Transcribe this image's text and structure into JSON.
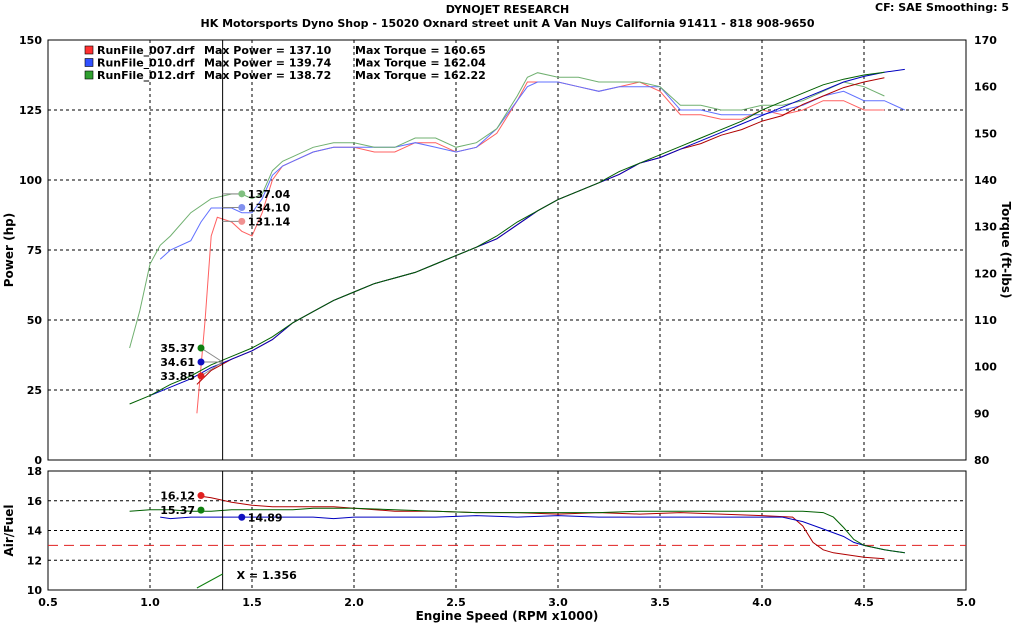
{
  "header": {
    "brand": "DYNOJET RESEARCH",
    "shop": "HK Motorsports Dyno Shop - 15020 Oxnard street unit A Van Nuys California 91411 - 818 908-9650",
    "correction": "CF: SAE  Smoothing: 5"
  },
  "chart_data": [
    {
      "type": "line",
      "panel": "power-torque",
      "xlabel": "Engine Speed (RPM x1000)",
      "ylabel": "Power (hp)",
      "y2label": "Torque (ft-lbs)",
      "xlim": [
        0.5,
        5.0
      ],
      "ylim": [
        0,
        150
      ],
      "y2lim": [
        80,
        170
      ],
      "x_ticks": [
        "0.5",
        "1.0",
        "1.5",
        "2.0",
        "2.5",
        "3.0",
        "3.5",
        "4.0",
        "4.5",
        "5.0"
      ],
      "y_ticks": [
        "0",
        "25",
        "50",
        "75",
        "100",
        "125",
        "150"
      ],
      "y2_ticks": [
        "80",
        "90",
        "100",
        "110",
        "120",
        "130",
        "140",
        "150",
        "160",
        "170"
      ],
      "grid": true,
      "legend_position": "top-left",
      "legend": [
        {
          "file": "RunFile_007.drf",
          "power_label": "Max Power = 137.10",
          "torque_label": "Max Torque = 160.65",
          "color": "#ff3030"
        },
        {
          "file": "RunFile_010.drf",
          "power_label": "Max Power = 139.74",
          "torque_label": "Max Torque = 162.04",
          "color": "#3050ff"
        },
        {
          "file": "RunFile_012.drf",
          "power_label": "Max Power = 138.72",
          "torque_label": "Max Torque = 162.22",
          "color": "#30a030"
        }
      ],
      "cursor_x": 1.356,
      "cursor_label": "X = 1.356",
      "power_markers": [
        {
          "label": "35.37",
          "y": 40,
          "color": "#108010"
        },
        {
          "label": "34.61",
          "y": 35,
          "color": "#1010c0"
        },
        {
          "label": "33.85",
          "y": 30,
          "color": "#e02020"
        }
      ],
      "torque_markers": [
        {
          "label": "137.04",
          "y": 137.04,
          "color": "#80c080"
        },
        {
          "label": "134.10",
          "y": 134.1,
          "color": "#8090ee"
        },
        {
          "label": "131.14",
          "y": 131.14,
          "color": "#f09090"
        }
      ],
      "series": [
        {
          "name": "RunFile_007.drf Power",
          "axis": "left",
          "color": "#b00000",
          "x": [
            1.23,
            1.3,
            1.4,
            1.5,
            1.6,
            1.7,
            1.8,
            1.9,
            2.0,
            2.1,
            2.2,
            2.3,
            2.4,
            2.5,
            2.6,
            2.7,
            2.8,
            2.9,
            3.0,
            3.1,
            3.2,
            3.3,
            3.4,
            3.5,
            3.6,
            3.7,
            3.8,
            3.9,
            4.0,
            4.1,
            4.2,
            4.3,
            4.4,
            4.5,
            4.6
          ],
          "y": [
            27,
            32,
            36,
            39,
            43,
            49,
            53,
            57,
            60,
            63,
            65,
            67,
            70,
            73,
            76,
            79,
            84,
            89,
            93,
            96,
            99,
            102,
            106,
            108,
            111,
            113,
            116,
            118,
            121,
            123,
            127,
            130,
            133,
            135,
            136.5
          ]
        },
        {
          "name": "RunFile_010.drf Power",
          "axis": "left",
          "color": "#0000c0",
          "x": [
            1.0,
            1.1,
            1.2,
            1.3,
            1.4,
            1.5,
            1.6,
            1.7,
            1.8,
            1.9,
            2.0,
            2.1,
            2.2,
            2.3,
            2.4,
            2.5,
            2.6,
            2.7,
            2.8,
            2.9,
            3.0,
            3.1,
            3.2,
            3.3,
            3.4,
            3.5,
            3.6,
            3.7,
            3.8,
            3.9,
            4.0,
            4.1,
            4.2,
            4.3,
            4.4,
            4.5,
            4.6,
            4.7
          ],
          "y": [
            23,
            26,
            29,
            33,
            36,
            39,
            43,
            49,
            53,
            57,
            60,
            63,
            65,
            67,
            70,
            73,
            76,
            79,
            84,
            89,
            93,
            96,
            99,
            102,
            106,
            108,
            111,
            114,
            117,
            120,
            123,
            126,
            129,
            132,
            135,
            137,
            138.5,
            139.5
          ]
        },
        {
          "name": "RunFile_012.drf Power",
          "axis": "left",
          "color": "#006000",
          "x": [
            0.9,
            1.0,
            1.1,
            1.2,
            1.3,
            1.4,
            1.5,
            1.6,
            1.7,
            1.8,
            1.9,
            2.0,
            2.1,
            2.2,
            2.3,
            2.4,
            2.5,
            2.6,
            2.7,
            2.8,
            2.9,
            3.0,
            3.1,
            3.2,
            3.3,
            3.4,
            3.5,
            3.6,
            3.7,
            3.8,
            3.9,
            4.0,
            4.1,
            4.2,
            4.3,
            4.4,
            4.5,
            4.6
          ],
          "y": [
            20,
            23,
            27,
            30,
            34,
            37,
            40,
            44,
            49,
            53,
            57,
            60,
            63,
            65,
            67,
            70,
            73,
            76,
            80,
            85,
            89,
            93,
            96,
            99,
            103,
            106,
            109,
            112,
            115,
            118,
            121,
            125,
            128,
            131,
            134,
            136,
            137.5,
            138.5
          ]
        },
        {
          "name": "RunFile_007.drf Torque",
          "axis": "right",
          "color": "#ff6060",
          "x": [
            1.23,
            1.27,
            1.3,
            1.33,
            1.4,
            1.45,
            1.5,
            1.55,
            1.6,
            1.65,
            1.7,
            1.8,
            1.9,
            2.0,
            2.1,
            2.2,
            2.3,
            2.4,
            2.5,
            2.6,
            2.7,
            2.8,
            2.85,
            2.9,
            3.0,
            3.1,
            3.2,
            3.3,
            3.4,
            3.5,
            3.6,
            3.7,
            3.8,
            3.9,
            4.0,
            4.1,
            4.2,
            4.3,
            4.4,
            4.5,
            4.6
          ],
          "y": [
            90,
            110,
            128,
            132,
            131,
            129,
            128,
            133,
            140,
            143,
            144,
            146,
            147,
            147,
            146,
            146,
            148,
            148,
            146,
            147,
            150,
            157,
            161,
            161,
            161,
            160,
            159,
            160,
            161,
            159,
            154,
            154,
            153,
            153,
            155,
            154,
            155,
            157,
            157,
            155,
            155
          ]
        },
        {
          "name": "RunFile_010.drf Torque",
          "axis": "right",
          "color": "#6070ff",
          "x": [
            1.05,
            1.1,
            1.2,
            1.25,
            1.3,
            1.4,
            1.45,
            1.5,
            1.55,
            1.6,
            1.65,
            1.7,
            1.8,
            1.9,
            2.0,
            2.1,
            2.2,
            2.3,
            2.4,
            2.5,
            2.6,
            2.7,
            2.8,
            2.85,
            2.9,
            3.0,
            3.1,
            3.2,
            3.3,
            3.4,
            3.5,
            3.6,
            3.7,
            3.8,
            3.9,
            4.0,
            4.1,
            4.2,
            4.3,
            4.4,
            4.5,
            4.6,
            4.7
          ],
          "y": [
            123,
            125,
            127,
            131,
            134,
            134,
            133,
            133,
            136,
            141,
            143,
            144,
            146,
            147,
            147,
            147,
            147,
            148,
            147,
            146,
            147,
            151,
            157,
            160,
            161,
            161,
            160,
            159,
            160,
            160,
            160,
            155,
            155,
            154,
            154,
            154,
            155,
            156,
            158,
            159,
            157,
            157,
            155
          ]
        },
        {
          "name": "RunFile_012.drf Torque",
          "axis": "right",
          "color": "#70b070",
          "x": [
            0.9,
            0.95,
            1.0,
            1.05,
            1.1,
            1.2,
            1.3,
            1.4,
            1.45,
            1.5,
            1.55,
            1.6,
            1.65,
            1.7,
            1.8,
            1.9,
            2.0,
            2.1,
            2.2,
            2.3,
            2.4,
            2.5,
            2.6,
            2.7,
            2.8,
            2.85,
            2.9,
            3.0,
            3.1,
            3.2,
            3.3,
            3.4,
            3.5,
            3.6,
            3.7,
            3.8,
            3.9,
            4.0,
            4.1,
            4.2,
            4.3,
            4.4,
            4.5,
            4.6
          ],
          "y": [
            104,
            112,
            122,
            126,
            128,
            133,
            136,
            137,
            137,
            136,
            137,
            142,
            144,
            145,
            147,
            148,
            148,
            147,
            147,
            149,
            149,
            147,
            148,
            151,
            158,
            162,
            163,
            162,
            162,
            161,
            161,
            161,
            160,
            156,
            156,
            155,
            155,
            156,
            156,
            157,
            159,
            161,
            160,
            158
          ]
        }
      ]
    },
    {
      "type": "line",
      "panel": "air-fuel",
      "xlabel": "Engine Speed (RPM x1000)",
      "ylabel": "Air/Fuel",
      "xlim": [
        0.5,
        5.0
      ],
      "ylim": [
        10,
        18
      ],
      "x_ticks": [
        "0.5",
        "1.0",
        "1.5",
        "2.0",
        "2.5",
        "3.0",
        "3.5",
        "4.0",
        "4.5",
        "5.0"
      ],
      "y_ticks": [
        "10",
        "12",
        "14",
        "16",
        "18"
      ],
      "grid": true,
      "reference_line": {
        "y": 13.0,
        "color": "#e02020"
      },
      "markers": [
        {
          "label": "16.12",
          "x": 1.25,
          "y": 16.35,
          "color": "#e02020"
        },
        {
          "label": "15.37",
          "x": 1.25,
          "y": 15.37,
          "color": "#108010"
        },
        {
          "label": "14.89",
          "x": 1.45,
          "y": 14.89,
          "color": "#1010c0"
        }
      ],
      "series": [
        {
          "name": "RunFile_007.drf A/F",
          "color": "#b00000",
          "x": [
            1.25,
            1.3,
            1.4,
            1.5,
            1.6,
            1.7,
            1.8,
            1.9,
            2.0,
            2.2,
            2.4,
            2.6,
            2.8,
            3.0,
            3.2,
            3.4,
            3.6,
            3.8,
            4.0,
            4.15,
            4.2,
            4.25,
            4.3,
            4.35,
            4.4,
            4.5,
            4.6
          ],
          "y": [
            16.3,
            16.2,
            15.9,
            15.7,
            15.6,
            15.6,
            15.6,
            15.6,
            15.5,
            15.3,
            15.3,
            15.2,
            15.2,
            15.1,
            15.2,
            15.1,
            15.2,
            15.1,
            15.0,
            14.9,
            14.3,
            13.2,
            12.7,
            12.5,
            12.4,
            12.2,
            12.1
          ]
        },
        {
          "name": "RunFile_010.drf A/F",
          "color": "#0000c0",
          "x": [
            1.05,
            1.1,
            1.2,
            1.3,
            1.4,
            1.5,
            1.6,
            1.7,
            1.8,
            1.9,
            2.0,
            2.2,
            2.4,
            2.6,
            2.8,
            3.0,
            3.2,
            3.4,
            3.6,
            3.8,
            4.0,
            4.1,
            4.2,
            4.3,
            4.4,
            4.45,
            4.5,
            4.6,
            4.7
          ],
          "y": [
            14.9,
            14.8,
            14.9,
            14.9,
            14.9,
            14.9,
            14.9,
            14.9,
            14.9,
            14.8,
            14.9,
            14.9,
            14.9,
            15.0,
            14.9,
            15.0,
            14.9,
            14.9,
            14.9,
            14.9,
            14.9,
            14.9,
            14.6,
            14.1,
            13.6,
            13.2,
            13.0,
            12.7,
            12.5
          ]
        },
        {
          "name": "RunFile_012.drf A/F",
          "color": "#006000",
          "x": [
            0.9,
            1.0,
            1.1,
            1.2,
            1.3,
            1.4,
            1.5,
            1.6,
            1.7,
            1.8,
            1.9,
            2.0,
            2.2,
            2.4,
            2.6,
            2.8,
            3.0,
            3.2,
            3.4,
            3.6,
            3.8,
            4.0,
            4.2,
            4.3,
            4.35,
            4.4,
            4.45,
            4.5,
            4.6,
            4.7
          ],
          "y": [
            15.3,
            15.4,
            15.4,
            15.3,
            15.3,
            15.4,
            15.4,
            15.4,
            15.4,
            15.5,
            15.5,
            15.5,
            15.4,
            15.3,
            15.2,
            15.2,
            15.2,
            15.2,
            15.3,
            15.3,
            15.3,
            15.3,
            15.3,
            15.2,
            14.9,
            14.2,
            13.4,
            13.0,
            12.7,
            12.5
          ]
        }
      ]
    }
  ]
}
